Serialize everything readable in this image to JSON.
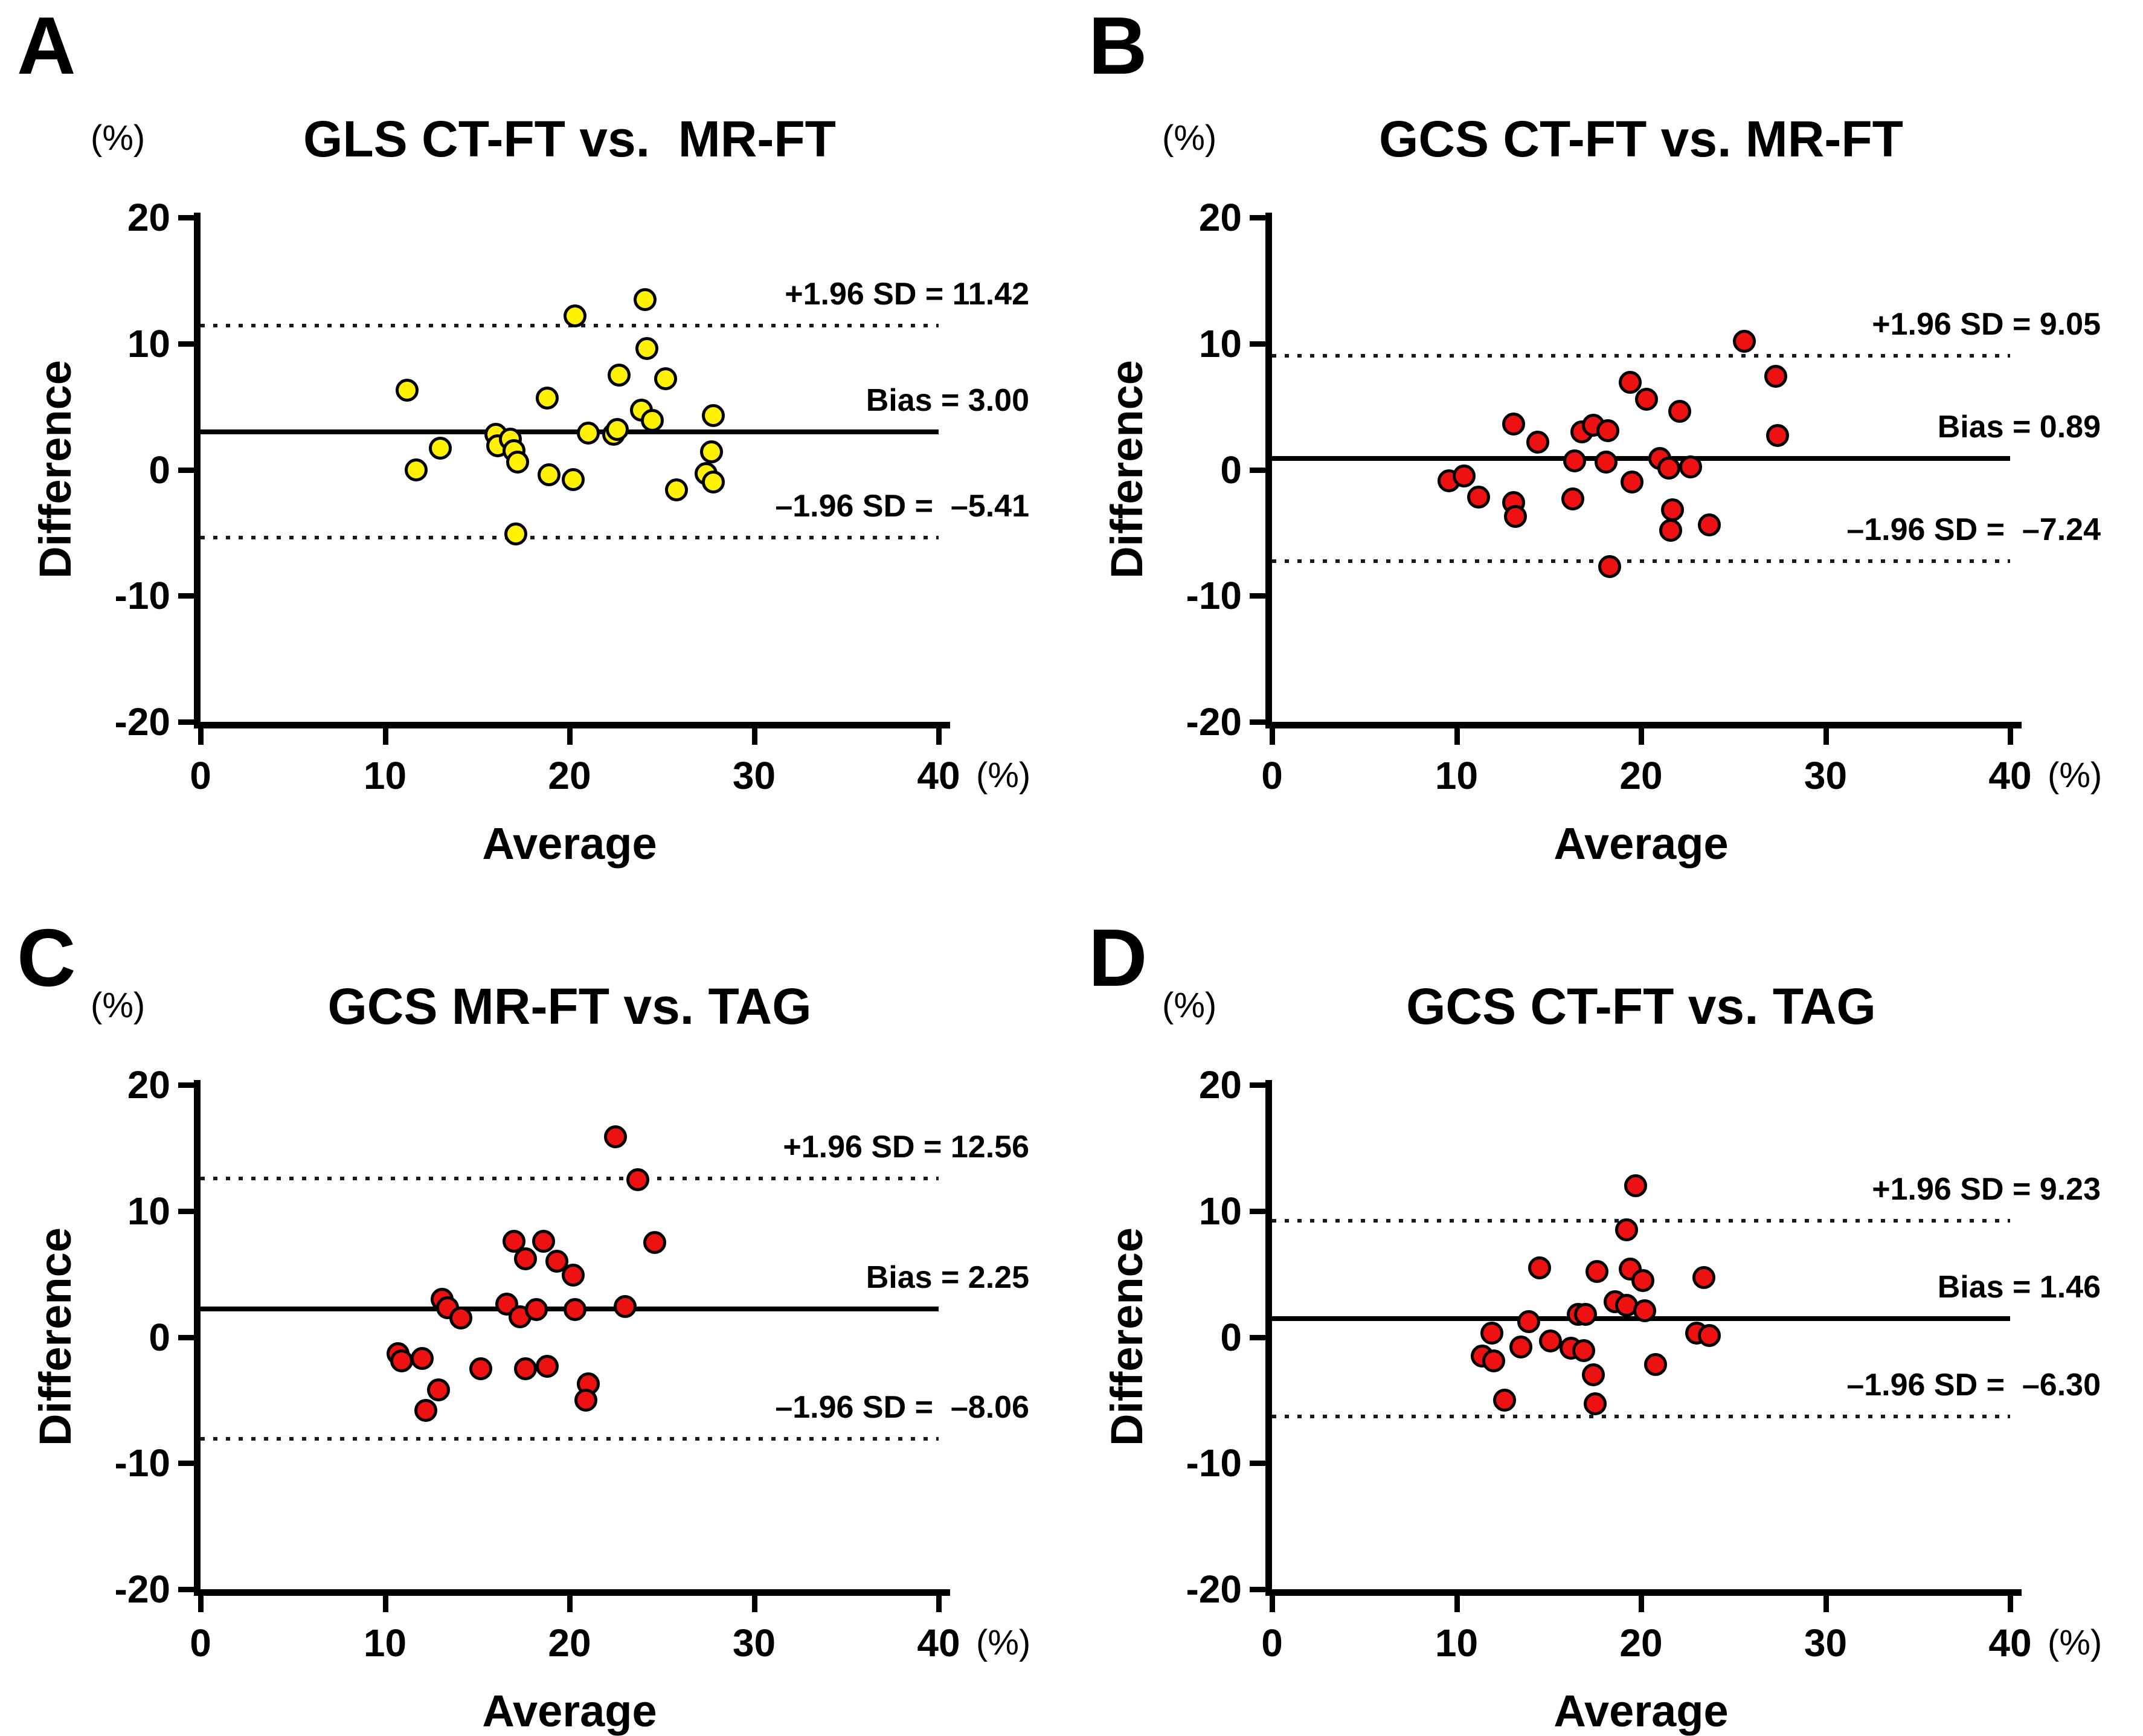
{
  "shared": {
    "x_axis_label": "Average",
    "y_axis_label": "Difference",
    "x_unit": "(%)",
    "y_unit": "(%)",
    "x_tick_labels": [
      "0",
      "10",
      "20",
      "30",
      "40"
    ],
    "y_tick_labels": [
      "20",
      "10",
      "0",
      "-10",
      "-20"
    ],
    "xlim": [
      0,
      40
    ],
    "ylim": [
      -20,
      20
    ],
    "grid": false,
    "line_color": "#000000"
  },
  "chart_data": [
    {
      "panel_label": "A",
      "type": "scatter",
      "title": "GLS CT-FT vs.  MR-FT",
      "dot_color": "#FFF100",
      "bias": 3.0,
      "upper_loa": 11.42,
      "lower_loa": -5.41,
      "upper_label": "+1.96 SD = 11.42",
      "bias_label": "Bias = 3.00",
      "lower_label": "–1.96 SD =  –5.41",
      "xlabel": "Average",
      "ylabel": "Difference",
      "points": [
        [
          11.2,
          6.3
        ],
        [
          11.7,
          0.0
        ],
        [
          13.0,
          1.7
        ],
        [
          16.0,
          2.8
        ],
        [
          16.1,
          1.9
        ],
        [
          16.8,
          2.4
        ],
        [
          17.0,
          1.5
        ],
        [
          17.2,
          0.6
        ],
        [
          17.1,
          -5.1
        ],
        [
          18.8,
          5.7
        ],
        [
          18.9,
          -0.4
        ],
        [
          20.2,
          -0.8
        ],
        [
          20.3,
          12.2
        ],
        [
          21.0,
          2.9
        ],
        [
          22.4,
          2.8
        ],
        [
          22.6,
          3.2
        ],
        [
          22.7,
          7.5
        ],
        [
          23.9,
          4.7
        ],
        [
          24.1,
          13.5
        ],
        [
          24.2,
          9.6
        ],
        [
          24.5,
          3.9
        ],
        [
          25.2,
          7.2
        ],
        [
          25.8,
          -1.6
        ],
        [
          27.4,
          -0.3
        ],
        [
          27.7,
          1.4
        ],
        [
          27.8,
          4.3
        ],
        [
          27.8,
          -1.0
        ]
      ]
    },
    {
      "panel_label": "B",
      "type": "scatter",
      "title": "GCS CT-FT vs. MR-FT",
      "dot_color": "#EE1111",
      "bias": 0.89,
      "upper_loa": 9.05,
      "lower_loa": -7.24,
      "upper_label": "+1.96 SD = 9.05",
      "bias_label": "Bias = 0.89",
      "lower_label": "–1.96 SD =  –7.24",
      "xlabel": "Average",
      "ylabel": "Difference",
      "points": [
        [
          9.6,
          -0.9
        ],
        [
          10.4,
          -0.5
        ],
        [
          11.2,
          -2.2
        ],
        [
          13.1,
          3.6
        ],
        [
          13.1,
          -2.6
        ],
        [
          13.2,
          -3.7
        ],
        [
          14.4,
          2.2
        ],
        [
          16.3,
          -2.3
        ],
        [
          16.4,
          0.7
        ],
        [
          16.8,
          3.0
        ],
        [
          17.4,
          3.5
        ],
        [
          18.1,
          0.6
        ],
        [
          18.2,
          3.1
        ],
        [
          18.3,
          -7.7
        ],
        [
          19.4,
          6.9
        ],
        [
          19.5,
          -1.0
        ],
        [
          20.3,
          5.6
        ],
        [
          21.0,
          0.9
        ],
        [
          21.5,
          0.1
        ],
        [
          21.6,
          -4.8
        ],
        [
          21.7,
          -3.2
        ],
        [
          22.1,
          4.6
        ],
        [
          22.7,
          0.2
        ],
        [
          23.7,
          -4.4
        ],
        [
          25.6,
          10.2
        ],
        [
          27.3,
          7.4
        ],
        [
          27.4,
          2.7
        ]
      ]
    },
    {
      "panel_label": "C",
      "type": "scatter",
      "title": "GCS MR-FT vs. TAG",
      "dot_color": "#EE1111",
      "bias": 2.25,
      "upper_loa": 12.56,
      "lower_loa": -8.06,
      "upper_label": "+1.96 SD = 12.56",
      "bias_label": "Bias = 2.25",
      "lower_label": "–1.96 SD =  –8.06",
      "xlabel": "Average",
      "ylabel": "Difference",
      "points": [
        [
          10.7,
          -1.3
        ],
        [
          10.9,
          -1.9
        ],
        [
          12.0,
          -1.7
        ],
        [
          12.2,
          -5.8
        ],
        [
          12.9,
          -4.2
        ],
        [
          13.1,
          3.0
        ],
        [
          13.4,
          2.3
        ],
        [
          14.1,
          1.5
        ],
        [
          15.2,
          -2.5
        ],
        [
          16.6,
          2.6
        ],
        [
          17.0,
          7.6
        ],
        [
          17.3,
          1.6
        ],
        [
          17.6,
          6.2
        ],
        [
          17.6,
          -2.5
        ],
        [
          18.2,
          2.2
        ],
        [
          18.6,
          7.6
        ],
        [
          18.8,
          -2.3
        ],
        [
          19.3,
          6.0
        ],
        [
          20.2,
          4.9
        ],
        [
          20.3,
          2.2
        ],
        [
          21.0,
          -3.7
        ],
        [
          20.9,
          -5.0
        ],
        [
          22.5,
          15.9
        ],
        [
          23.0,
          2.4
        ],
        [
          23.7,
          12.5
        ],
        [
          24.6,
          7.5
        ]
      ]
    },
    {
      "panel_label": "D",
      "type": "scatter",
      "title": "GCS CT-FT vs. TAG",
      "dot_color": "#EE1111",
      "bias": 1.46,
      "upper_loa": 9.23,
      "lower_loa": -6.3,
      "upper_label": "+1.96 SD = 9.23",
      "bias_label": "Bias = 1.46",
      "lower_label": "–1.96 SD =  –6.30",
      "xlabel": "Average",
      "ylabel": "Difference",
      "points": [
        [
          11.4,
          -1.5
        ],
        [
          11.9,
          0.3
        ],
        [
          12.0,
          -1.9
        ],
        [
          12.6,
          -5.0
        ],
        [
          13.5,
          -0.8
        ],
        [
          13.9,
          1.2
        ],
        [
          14.5,
          5.5
        ],
        [
          15.1,
          -0.3
        ],
        [
          16.2,
          -0.9
        ],
        [
          16.6,
          1.8
        ],
        [
          16.9,
          -1.1
        ],
        [
          17.0,
          1.8
        ],
        [
          17.4,
          -3.0
        ],
        [
          17.5,
          -5.3
        ],
        [
          17.6,
          5.2
        ],
        [
          18.6,
          2.8
        ],
        [
          19.2,
          2.5
        ],
        [
          19.2,
          8.5
        ],
        [
          19.4,
          5.4
        ],
        [
          19.7,
          12.0
        ],
        [
          20.1,
          4.5
        ],
        [
          20.2,
          2.1
        ],
        [
          20.8,
          -2.2
        ],
        [
          23.0,
          0.3
        ],
        [
          23.4,
          4.7
        ],
        [
          23.7,
          0.1
        ]
      ]
    }
  ]
}
